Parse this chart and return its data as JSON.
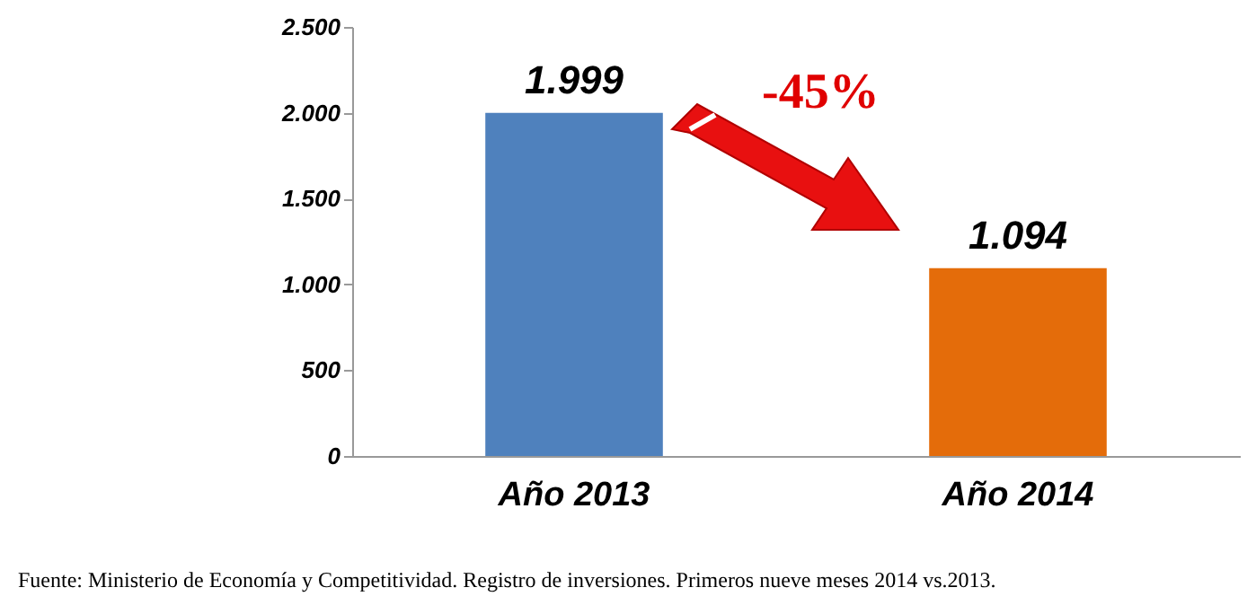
{
  "chart_data": {
    "type": "bar",
    "categories": [
      "Año 2013",
      "Año 2014"
    ],
    "values": [
      1999,
      1094
    ],
    "colors": [
      "#4f81bd",
      "#e46c0a"
    ],
    "value_labels": [
      "1.999",
      "1.094"
    ],
    "ylim": [
      0,
      2500
    ],
    "yticks": [
      0,
      500,
      {
        "value": 1000,
        "label": "1.000"
      },
      {
        "value": 1500,
        "label": "1.500"
      },
      {
        "value": 2000,
        "label": "2.000"
      },
      {
        "value": 2500,
        "label": "2.500"
      }
    ],
    "annotations": [
      "-45%",
      "Fuente: Ministerio de Economía y Competitividad. Registro de inversiones. Primeros nueve meses 2014 vs.2013."
    ]
  }
}
